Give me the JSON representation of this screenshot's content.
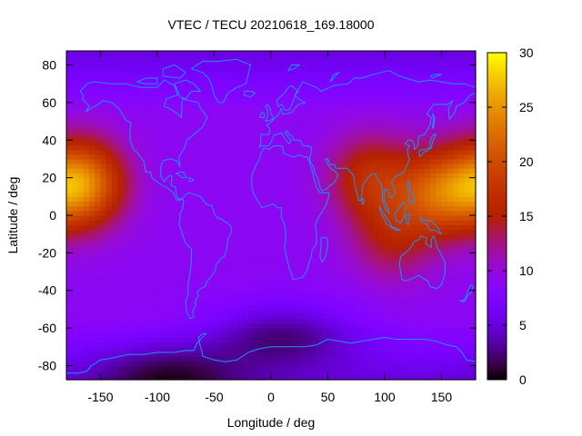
{
  "chart_data": {
    "type": "heatmap",
    "title": "VTEC / TECU 20210618_169.18000",
    "xlabel": "Longitude / deg",
    "ylabel": "Latitude / deg",
    "xlim": [
      -180,
      180
    ],
    "ylim": [
      -87.5,
      87.5
    ],
    "xticks": [
      -150,
      -100,
      -50,
      0,
      50,
      100,
      150
    ],
    "yticks": [
      -80,
      -60,
      -40,
      -20,
      0,
      20,
      40,
      60,
      80
    ],
    "colorbar": {
      "min": 0,
      "max": 30,
      "ticks": [
        0,
        5,
        10,
        15,
        20,
        25,
        30
      ]
    },
    "grid": false,
    "legend": "none",
    "colors": {
      "coastline": "#1e90ff",
      "axis": "#000000"
    },
    "z_features": {
      "background_vtec": 9,
      "enhancements": [
        {
          "lon": -167,
          "lat": 17,
          "peak_vtec": 27
        },
        {
          "lon": 148,
          "lat": 12,
          "peak_vtec": 22
        },
        {
          "lon": 88,
          "lat": 20,
          "peak_vtec": 18
        },
        {
          "lon": 107,
          "lat": -12,
          "peak_vtec": 15
        }
      ],
      "depletions": [
        {
          "lon": 10,
          "lat": -63,
          "min_vtec": 2
        },
        {
          "lon": -90,
          "lat": -85,
          "min_vtec": 3
        }
      ]
    }
  }
}
